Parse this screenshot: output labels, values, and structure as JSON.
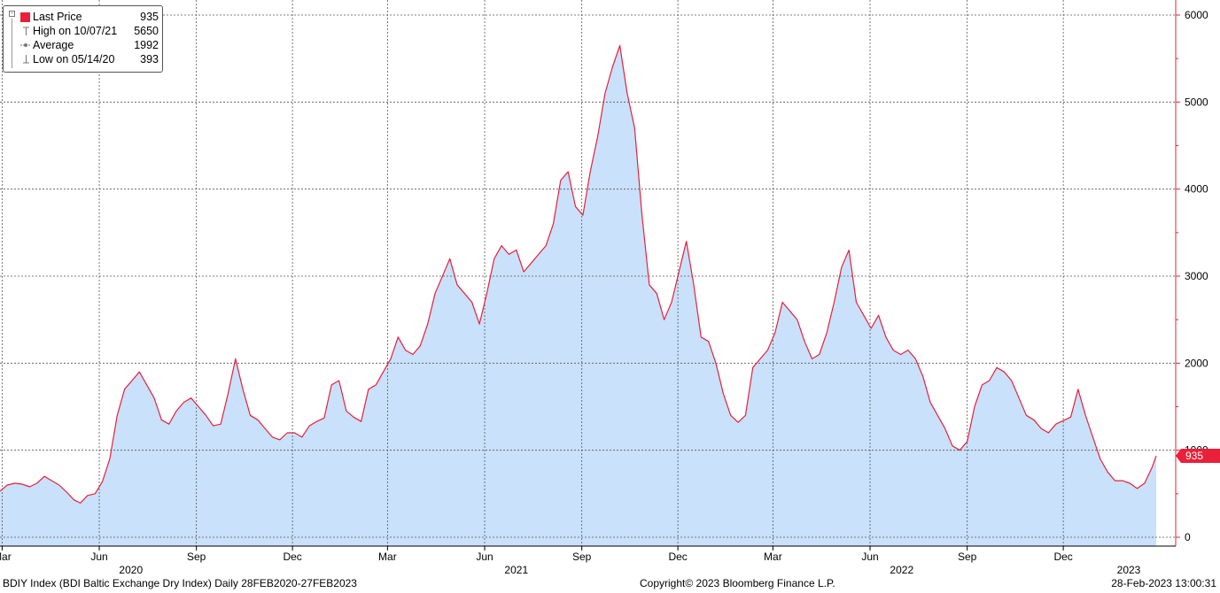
{
  "legend": {
    "last_price_label": "Last Price",
    "last_price_value": "935",
    "high_label": "High on 10/07/21",
    "high_value": "5650",
    "average_label": "Average",
    "average_value": "1992",
    "low_label": "Low on 05/14/20",
    "low_value": "393"
  },
  "last_value_tag": "935",
  "footer": {
    "left": "BDIY Index (BDI Baltic Exchange Dry Index)  Daily 28FEB2020-27FEB2023",
    "center": "Copyright© 2023 Bloomberg Finance L.P.",
    "right": "28-Feb-2023 13:00:31"
  },
  "colors": {
    "line": "#e8203a",
    "fill": "#c9e1fb",
    "axis": "#e8203a",
    "grid": "#555555"
  },
  "chart_data": {
    "type": "area",
    "title": "",
    "xlabel": "",
    "ylabel": "",
    "ylim": [
      0,
      6000
    ],
    "y_ticks": [
      "0",
      "1000",
      "2000",
      "3000",
      "4000",
      "5000",
      "6000"
    ],
    "x_month_ticks": [
      {
        "date": "2020-03",
        "label": "Mar"
      },
      {
        "date": "2020-06",
        "label": "Jun"
      },
      {
        "date": "2020-09",
        "label": "Sep"
      },
      {
        "date": "2020-12",
        "label": "Dec"
      },
      {
        "date": "2021-03",
        "label": "Mar"
      },
      {
        "date": "2021-06",
        "label": "Jun"
      },
      {
        "date": "2021-09",
        "label": "Sep"
      },
      {
        "date": "2021-12",
        "label": "Dec"
      },
      {
        "date": "2022-03",
        "label": "Mar"
      },
      {
        "date": "2022-06",
        "label": "Jun"
      },
      {
        "date": "2022-09",
        "label": "Sep"
      },
      {
        "date": "2022-12",
        "label": "Dec"
      }
    ],
    "x_year_ticks": [
      {
        "date": "2020-07",
        "label": "2020"
      },
      {
        "date": "2021-07",
        "label": "2021"
      },
      {
        "date": "2022-07",
        "label": "2022"
      },
      {
        "date": "2023-02",
        "label": "2023"
      }
    ],
    "grid": true,
    "series": [
      {
        "points": [
          [
            "2020-02-28",
            530
          ],
          [
            "2020-03-06",
            600
          ],
          [
            "2020-03-13",
            620
          ],
          [
            "2020-03-20",
            610
          ],
          [
            "2020-03-27",
            580
          ],
          [
            "2020-04-03",
            620
          ],
          [
            "2020-04-10",
            700
          ],
          [
            "2020-04-17",
            650
          ],
          [
            "2020-04-24",
            600
          ],
          [
            "2020-05-01",
            520
          ],
          [
            "2020-05-08",
            430
          ],
          [
            "2020-05-14",
            393
          ],
          [
            "2020-05-21",
            480
          ],
          [
            "2020-05-28",
            500
          ],
          [
            "2020-06-04",
            640
          ],
          [
            "2020-06-11",
            900
          ],
          [
            "2020-06-18",
            1400
          ],
          [
            "2020-06-25",
            1700
          ],
          [
            "2020-07-02",
            1800
          ],
          [
            "2020-07-09",
            1900
          ],
          [
            "2020-07-16",
            1750
          ],
          [
            "2020-07-23",
            1600
          ],
          [
            "2020-07-30",
            1350
          ],
          [
            "2020-08-06",
            1300
          ],
          [
            "2020-08-13",
            1450
          ],
          [
            "2020-08-20",
            1550
          ],
          [
            "2020-08-27",
            1600
          ],
          [
            "2020-09-03",
            1500
          ],
          [
            "2020-09-10",
            1400
          ],
          [
            "2020-09-17",
            1280
          ],
          [
            "2020-09-24",
            1300
          ],
          [
            "2020-10-01",
            1650
          ],
          [
            "2020-10-08",
            2050
          ],
          [
            "2020-10-15",
            1700
          ],
          [
            "2020-10-22",
            1400
          ],
          [
            "2020-10-29",
            1350
          ],
          [
            "2020-11-05",
            1250
          ],
          [
            "2020-11-12",
            1150
          ],
          [
            "2020-11-19",
            1120
          ],
          [
            "2020-11-26",
            1200
          ],
          [
            "2020-12-03",
            1200
          ],
          [
            "2020-12-10",
            1150
          ],
          [
            "2020-12-17",
            1280
          ],
          [
            "2020-12-24",
            1330
          ],
          [
            "2020-12-31",
            1370
          ],
          [
            "2021-01-07",
            1750
          ],
          [
            "2021-01-14",
            1800
          ],
          [
            "2021-01-21",
            1450
          ],
          [
            "2021-01-28",
            1380
          ],
          [
            "2021-02-04",
            1330
          ],
          [
            "2021-02-11",
            1700
          ],
          [
            "2021-02-18",
            1750
          ],
          [
            "2021-02-25",
            1900
          ],
          [
            "2021-03-04",
            2050
          ],
          [
            "2021-03-11",
            2300
          ],
          [
            "2021-03-18",
            2150
          ],
          [
            "2021-03-25",
            2100
          ],
          [
            "2021-04-01",
            2200
          ],
          [
            "2021-04-08",
            2450
          ],
          [
            "2021-04-15",
            2800
          ],
          [
            "2021-04-22",
            3000
          ],
          [
            "2021-04-29",
            3200
          ],
          [
            "2021-05-06",
            2900
          ],
          [
            "2021-05-13",
            2800
          ],
          [
            "2021-05-20",
            2700
          ],
          [
            "2021-05-27",
            2450
          ],
          [
            "2021-06-03",
            2800
          ],
          [
            "2021-06-10",
            3200
          ],
          [
            "2021-06-17",
            3350
          ],
          [
            "2021-06-24",
            3250
          ],
          [
            "2021-07-01",
            3300
          ],
          [
            "2021-07-08",
            3050
          ],
          [
            "2021-07-15",
            3150
          ],
          [
            "2021-07-22",
            3250
          ],
          [
            "2021-07-29",
            3350
          ],
          [
            "2021-08-05",
            3600
          ],
          [
            "2021-08-12",
            4100
          ],
          [
            "2021-08-19",
            4200
          ],
          [
            "2021-08-26",
            3800
          ],
          [
            "2021-09-02",
            3700
          ],
          [
            "2021-09-09",
            4200
          ],
          [
            "2021-09-16",
            4600
          ],
          [
            "2021-09-23",
            5100
          ],
          [
            "2021-09-30",
            5400
          ],
          [
            "2021-10-07",
            5650
          ],
          [
            "2021-10-14",
            5100
          ],
          [
            "2021-10-21",
            4700
          ],
          [
            "2021-10-28",
            3700
          ],
          [
            "2021-11-04",
            2900
          ],
          [
            "2021-11-11",
            2800
          ],
          [
            "2021-11-18",
            2500
          ],
          [
            "2021-11-25",
            2700
          ],
          [
            "2021-12-02",
            3050
          ],
          [
            "2021-12-09",
            3400
          ],
          [
            "2021-12-16",
            2900
          ],
          [
            "2021-12-23",
            2300
          ],
          [
            "2021-12-30",
            2250
          ],
          [
            "2022-01-06",
            2000
          ],
          [
            "2022-01-13",
            1650
          ],
          [
            "2022-01-20",
            1400
          ],
          [
            "2022-01-27",
            1320
          ],
          [
            "2022-02-03",
            1400
          ],
          [
            "2022-02-10",
            1950
          ],
          [
            "2022-02-17",
            2050
          ],
          [
            "2022-02-24",
            2150
          ],
          [
            "2022-03-03",
            2350
          ],
          [
            "2022-03-10",
            2700
          ],
          [
            "2022-03-17",
            2600
          ],
          [
            "2022-03-24",
            2500
          ],
          [
            "2022-03-31",
            2250
          ],
          [
            "2022-04-07",
            2050
          ],
          [
            "2022-04-14",
            2100
          ],
          [
            "2022-04-21",
            2350
          ],
          [
            "2022-04-28",
            2700
          ],
          [
            "2022-05-05",
            3100
          ],
          [
            "2022-05-12",
            3300
          ],
          [
            "2022-05-19",
            2700
          ],
          [
            "2022-05-26",
            2550
          ],
          [
            "2022-06-02",
            2400
          ],
          [
            "2022-06-09",
            2550
          ],
          [
            "2022-06-16",
            2300
          ],
          [
            "2022-06-23",
            2150
          ],
          [
            "2022-06-30",
            2100
          ],
          [
            "2022-07-07",
            2150
          ],
          [
            "2022-07-14",
            2050
          ],
          [
            "2022-07-21",
            1850
          ],
          [
            "2022-07-28",
            1550
          ],
          [
            "2022-08-04",
            1400
          ],
          [
            "2022-08-11",
            1250
          ],
          [
            "2022-08-18",
            1050
          ],
          [
            "2022-08-25",
            1000
          ],
          [
            "2022-09-01",
            1100
          ],
          [
            "2022-09-08",
            1500
          ],
          [
            "2022-09-15",
            1750
          ],
          [
            "2022-09-22",
            1800
          ],
          [
            "2022-09-29",
            1950
          ],
          [
            "2022-10-06",
            1900
          ],
          [
            "2022-10-13",
            1800
          ],
          [
            "2022-10-20",
            1600
          ],
          [
            "2022-10-27",
            1400
          ],
          [
            "2022-11-03",
            1350
          ],
          [
            "2022-11-10",
            1250
          ],
          [
            "2022-11-17",
            1200
          ],
          [
            "2022-11-24",
            1300
          ],
          [
            "2022-12-01",
            1340
          ],
          [
            "2022-12-08",
            1380
          ],
          [
            "2022-12-15",
            1700
          ],
          [
            "2022-12-22",
            1400
          ],
          [
            "2022-12-29",
            1150
          ],
          [
            "2023-01-05",
            900
          ],
          [
            "2023-01-12",
            750
          ],
          [
            "2023-01-19",
            650
          ],
          [
            "2023-01-26",
            650
          ],
          [
            "2023-02-02",
            620
          ],
          [
            "2023-02-09",
            560
          ],
          [
            "2023-02-16",
            620
          ],
          [
            "2023-02-23",
            800
          ],
          [
            "2023-02-27",
            935
          ]
        ]
      }
    ]
  }
}
